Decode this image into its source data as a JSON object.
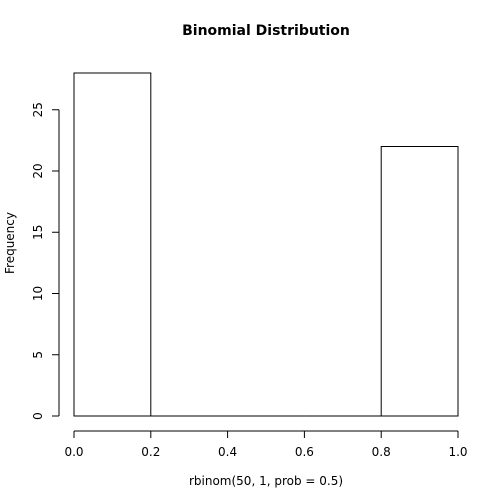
{
  "chart_data": {
    "type": "bar",
    "title": "Binomial Distribution",
    "xlabel": "rbinom(50, 1, prob = 0.5)",
    "ylabel": "Frequency",
    "bins": [
      {
        "start": 0.0,
        "end": 0.2,
        "count": 28
      },
      {
        "start": 0.2,
        "end": 0.4,
        "count": 0
      },
      {
        "start": 0.4,
        "end": 0.6,
        "count": 0
      },
      {
        "start": 0.6,
        "end": 0.8,
        "count": 0
      },
      {
        "start": 0.8,
        "end": 1.0,
        "count": 22
      }
    ],
    "xlim": [
      0.0,
      1.0
    ],
    "ylim": [
      0,
      28
    ],
    "x_ticks": [
      "0.0",
      "0.2",
      "0.4",
      "0.6",
      "0.8",
      "1.0"
    ],
    "y_ticks": [
      "0",
      "5",
      "10",
      "15",
      "20",
      "25"
    ],
    "grid": false,
    "legend": "none",
    "bar_fill": "#ffffff",
    "bar_stroke": "#000000"
  }
}
